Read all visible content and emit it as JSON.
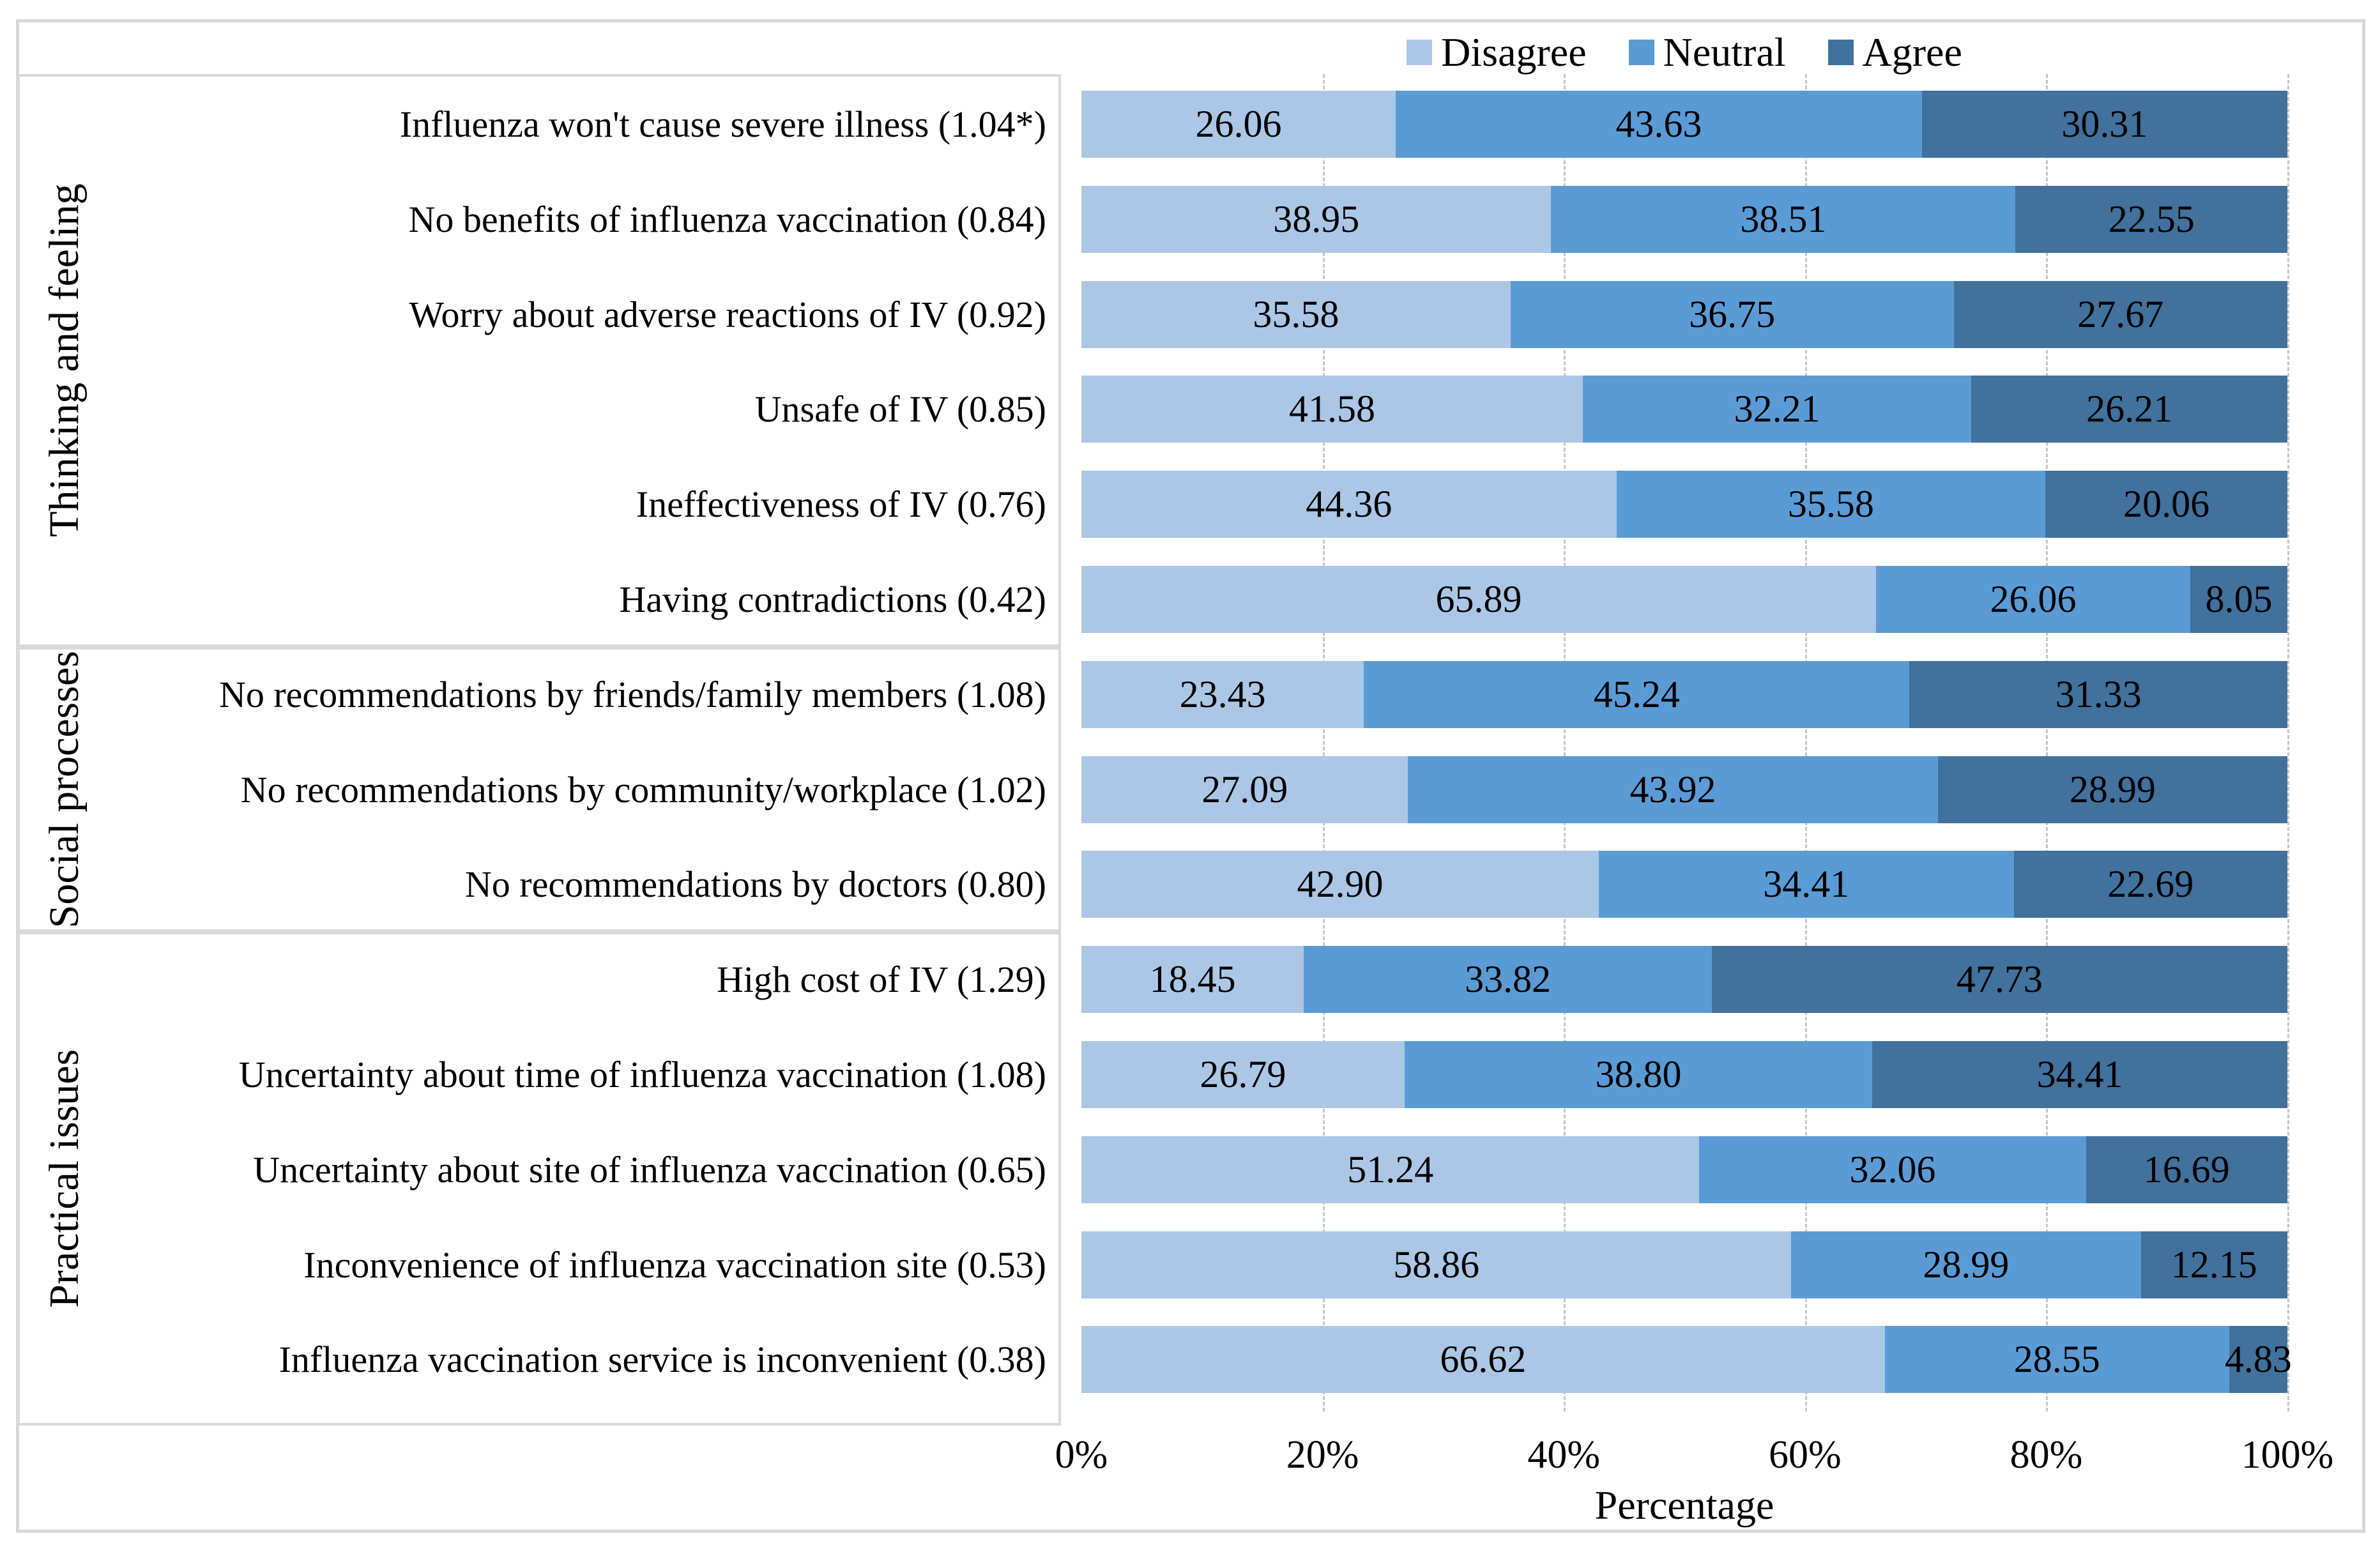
{
  "figure": {
    "legend_items": [
      {
        "label": "Disagree",
        "color": "#acc7e6"
      },
      {
        "label": "Neutral",
        "color": "#5b9bd5"
      },
      {
        "label": "Agree",
        "color": "#41719c"
      }
    ],
    "border_color": "#d9d9d9",
    "gridline_color": "#c7c7c7"
  },
  "chart_data": {
    "type": "bar",
    "subtype": "stacked-horizontal-percentage",
    "title": "",
    "xlabel": "Percentage",
    "ylabel": "",
    "xlim": [
      0,
      100
    ],
    "x_ticks": [
      "0%",
      "20%",
      "40%",
      "60%",
      "80%",
      "100%"
    ],
    "grid": "vertical-dashed",
    "legend_position": "top-center",
    "series_names": [
      "Disagree",
      "Neutral",
      "Agree"
    ],
    "series_colors": [
      "#acc7e6",
      "#5b9bd5",
      "#41719c"
    ],
    "groups": [
      {
        "name": "Thinking and feeling",
        "rows": [
          {
            "label": "Influenza won't cause severe illness (1.04*)",
            "values": [
              26.06,
              43.63,
              30.31
            ],
            "value_labels": [
              "26.06",
              "43.63",
              "30.31"
            ]
          },
          {
            "label": "No benefits of influenza vaccination (0.84)",
            "values": [
              38.95,
              38.51,
              22.55
            ],
            "value_labels": [
              "38.95",
              "38.51",
              "22.55"
            ]
          },
          {
            "label": "Worry about adverse reactions of IV (0.92)",
            "values": [
              35.58,
              36.75,
              27.67
            ],
            "value_labels": [
              "35.58",
              "36.75",
              "27.67"
            ]
          },
          {
            "label": "Unsafe of IV (0.85)",
            "values": [
              41.58,
              32.21,
              26.21
            ],
            "value_labels": [
              "41.58",
              "32.21",
              "26.21"
            ]
          },
          {
            "label": "Ineffectiveness of IV (0.76)",
            "values": [
              44.36,
              35.58,
              20.06
            ],
            "value_labels": [
              "44.36",
              "35.58",
              "20.06"
            ]
          },
          {
            "label": "Having contradictions (0.42)",
            "values": [
              65.89,
              26.06,
              8.05
            ],
            "value_labels": [
              "65.89",
              "26.06",
              "8.05"
            ]
          }
        ]
      },
      {
        "name": "Social processes",
        "rows": [
          {
            "label": "No recommendations by friends/family members (1.08)",
            "values": [
              23.43,
              45.24,
              31.33
            ],
            "value_labels": [
              "23.43",
              "45.24",
              "31.33"
            ]
          },
          {
            "label": "No recommendations by community/workplace (1.02)",
            "values": [
              27.09,
              43.92,
              28.99
            ],
            "value_labels": [
              "27.09",
              "43.92",
              "28.99"
            ]
          },
          {
            "label": "No recommendations by doctors (0.80)",
            "values": [
              42.9,
              34.41,
              22.69
            ],
            "value_labels": [
              "42.90",
              "34.41",
              "22.69"
            ]
          }
        ]
      },
      {
        "name": "Practical issues",
        "rows": [
          {
            "label": "High cost of IV (1.29)",
            "values": [
              18.45,
              33.82,
              47.73
            ],
            "value_labels": [
              "18.45",
              "33.82",
              "47.73"
            ]
          },
          {
            "label": "Uncertainty about time of influenza vaccination (1.08)",
            "values": [
              26.79,
              38.8,
              34.41
            ],
            "value_labels": [
              "26.79",
              "38.80",
              "34.41"
            ]
          },
          {
            "label": "Uncertainty about site of influenza vaccination (0.65)",
            "values": [
              51.24,
              32.06,
              16.69
            ],
            "value_labels": [
              "51.24",
              "32.06",
              "16.69"
            ]
          },
          {
            "label": "Inconvenience of influenza vaccination site (0.53)",
            "values": [
              58.86,
              28.99,
              12.15
            ],
            "value_labels": [
              "58.86",
              "28.99",
              "12.15"
            ]
          },
          {
            "label": "Influenza vaccination service is inconvenient (0.38)",
            "values": [
              66.62,
              28.55,
              4.83
            ],
            "value_labels": [
              "66.62",
              "28.55",
              "4.83"
            ]
          }
        ]
      }
    ]
  }
}
